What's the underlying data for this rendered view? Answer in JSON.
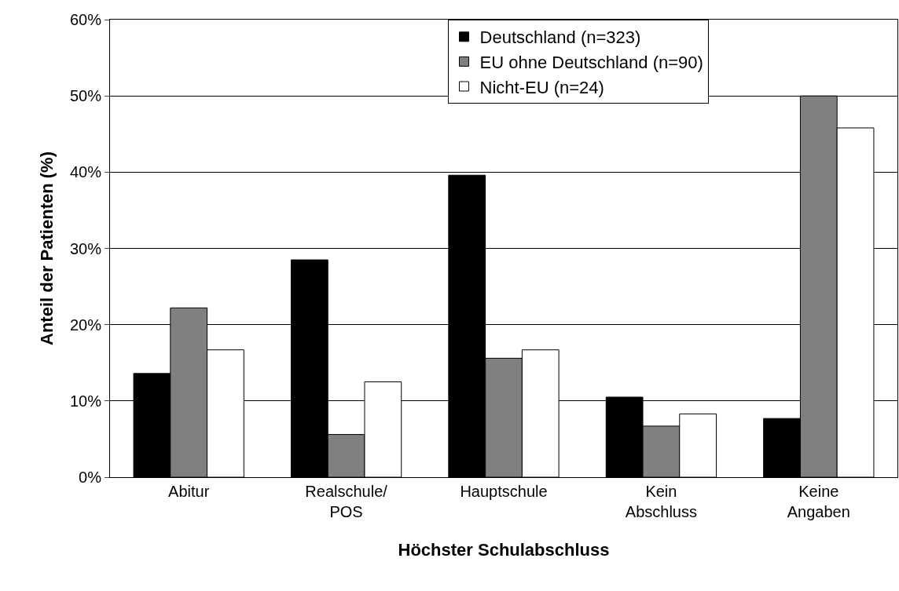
{
  "chart_data": {
    "type": "bar",
    "xlabel": "Höchster Schulabschluss",
    "ylabel": "Anteil der Patienten (%)",
    "categories": [
      "Abitur",
      "Realschule/\nPOS",
      "Hauptschule",
      "Kein\nAbschluss",
      "Keine\nAngaben"
    ],
    "series": [
      {
        "name": "Deutschland (n=323)",
        "color": "#000000",
        "values": [
          13.6,
          28.5,
          39.6,
          10.5,
          7.7
        ]
      },
      {
        "name": "EU ohne Deutschland (n=90)",
        "color": "#808080",
        "values": [
          22.2,
          5.6,
          15.6,
          6.7,
          50.0
        ]
      },
      {
        "name": "Nicht-EU (n=24)",
        "color": "#ffffff",
        "values": [
          16.7,
          12.5,
          16.7,
          8.3,
          45.8
        ]
      }
    ],
    "ylim": [
      0,
      60
    ],
    "yticks": [
      {
        "value": 0,
        "label": "0%"
      },
      {
        "value": 10,
        "label": "10%"
      },
      {
        "value": 20,
        "label": "20%"
      },
      {
        "value": 30,
        "label": "30%"
      },
      {
        "value": 40,
        "label": "40%"
      },
      {
        "value": 50,
        "label": "50%"
      },
      {
        "value": 60,
        "label": "60%"
      }
    ],
    "grid": "y",
    "legend": "top right"
  }
}
